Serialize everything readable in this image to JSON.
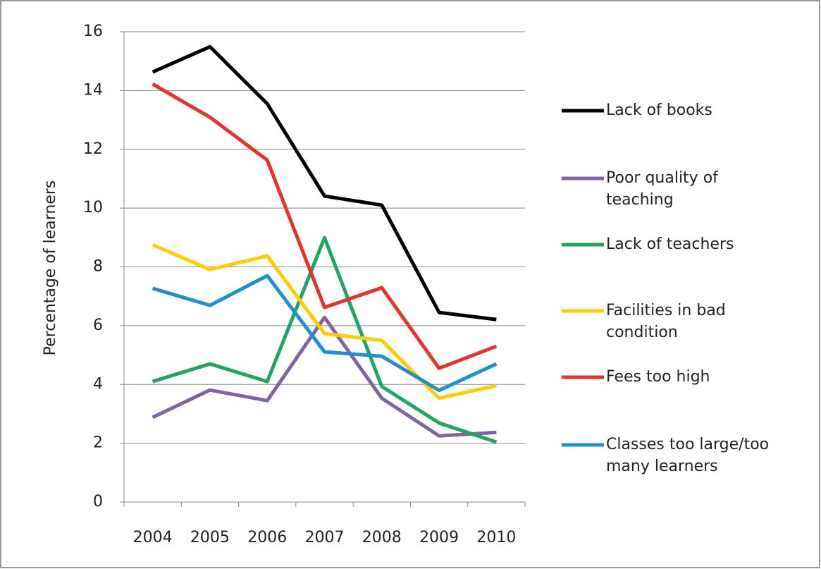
{
  "chart_data": {
    "type": "line",
    "y_label": "Percentage of learners",
    "categories": [
      "2004",
      "2005",
      "2006",
      "2007",
      "2008",
      "2009",
      "2010"
    ],
    "ylim": [
      0,
      16
    ],
    "yticks": [
      0,
      2,
      4,
      6,
      8,
      10,
      12,
      14,
      16
    ],
    "grid": true,
    "series": [
      {
        "name": "Lack of books",
        "color": "#000000",
        "values": [
          14.63,
          15.49,
          13.55,
          10.41,
          10.1,
          6.45,
          6.21
        ]
      },
      {
        "name": "Poor quality of teaching",
        "color": "#8064a2",
        "values": [
          2.88,
          3.81,
          3.45,
          6.28,
          3.53,
          2.25,
          2.37
        ]
      },
      {
        "name": "Lack of teachers",
        "color": "#1fa463",
        "values": [
          4.1,
          4.7,
          4.1,
          8.99,
          3.93,
          2.69,
          2.04
        ]
      },
      {
        "name": "Facilities in bad condition",
        "color": "#ffcc00",
        "values": [
          8.75,
          7.91,
          8.37,
          5.73,
          5.5,
          3.53,
          3.96
        ]
      },
      {
        "name": "Fees too high",
        "color": "#e8322a",
        "values": [
          14.22,
          13.09,
          11.63,
          6.62,
          7.29,
          4.55,
          5.3
        ]
      },
      {
        "name": "Classes too large/too many learners",
        "color": "#1e8fd0",
        "values": [
          7.27,
          6.69,
          7.7,
          5.11,
          4.96,
          3.8,
          4.7
        ]
      }
    ]
  }
}
